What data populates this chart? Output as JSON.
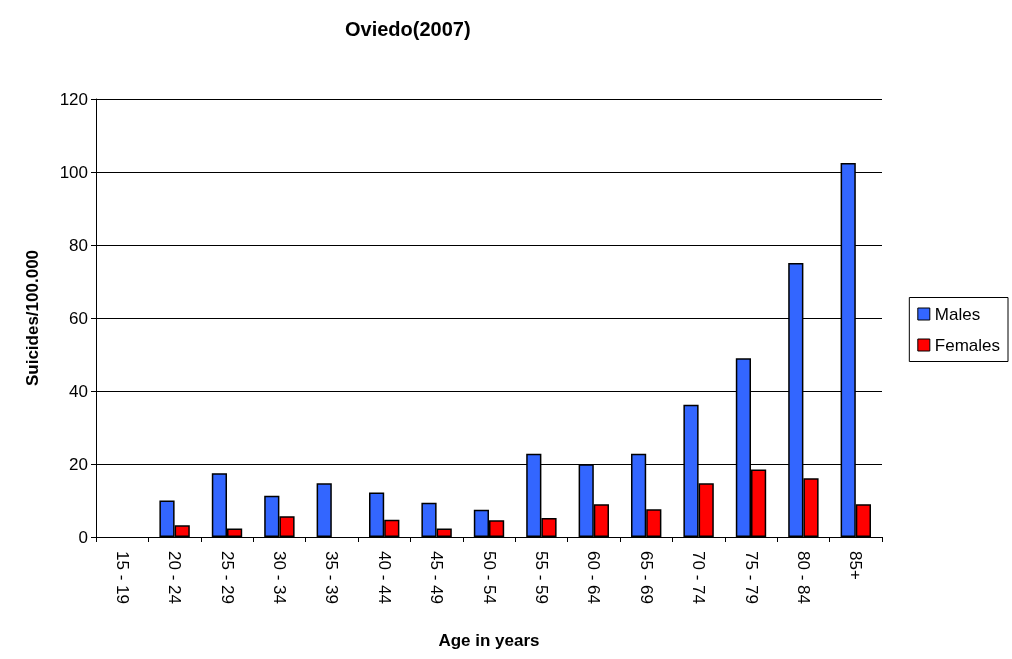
{
  "chart_data": {
    "type": "bar",
    "title": "Oviedo(2007)",
    "xlabel": "Age in years",
    "ylabel": "Suicides/100.000",
    "categories": [
      "15 - 19",
      "20 - 24",
      "25 - 29",
      "30 - 34",
      "35 - 39",
      "40 - 44",
      "45 - 49",
      "50 - 54",
      "55 - 59",
      "60 - 64",
      "65 - 69",
      "70 - 74",
      "75 - 79",
      "80 - 84",
      "85+"
    ],
    "series": [
      {
        "name": "Males",
        "color": "#3366ff",
        "values": [
          null,
          10,
          17.5,
          11.3,
          14.7,
          12.2,
          9.4,
          7.5,
          22.8,
          19.9,
          22.8,
          36.2,
          49,
          75.1,
          102.5
        ]
      },
      {
        "name": "Females",
        "color": "#ff0000",
        "values": [
          null,
          3.2,
          2.3,
          5.7,
          null,
          4.7,
          2.3,
          4.6,
          5.2,
          9,
          7.6,
          14.7,
          18.5,
          16.1,
          9
        ]
      }
    ],
    "ylim": [
      0,
      120
    ],
    "yticks": [
      0,
      20,
      40,
      60,
      80,
      100,
      120
    ],
    "grid": "y",
    "legend": "right"
  }
}
